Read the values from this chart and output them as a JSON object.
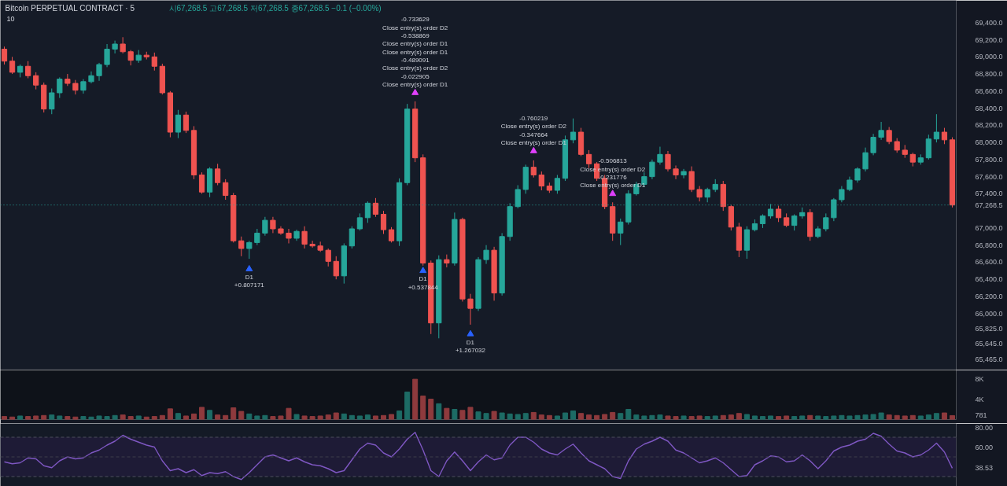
{
  "chart_data": [
    {
      "type": "candlestick",
      "title": "Bitcoin PERPETUAL CONTRACT · 5",
      "subtitle": "시67,268.5 고67,268.5 저67,268.5 종67,268.5 −0.1 (−0.00%)",
      "annotations": [
        "10"
      ],
      "categories": [
        null,
        null,
        null,
        null,
        null,
        null,
        null,
        null,
        null,
        null,
        null,
        null,
        null,
        null,
        null,
        null,
        null,
        null,
        null,
        null,
        null,
        null,
        null,
        null,
        null,
        null,
        null,
        null,
        null,
        null,
        null,
        null,
        null,
        null,
        null,
        null,
        null,
        null,
        null,
        null,
        null,
        null,
        null,
        null,
        null,
        null,
        null,
        null,
        null,
        null,
        null,
        null,
        null,
        null,
        null,
        null,
        null,
        null,
        null,
        null,
        null,
        null,
        null,
        null,
        null,
        null,
        null,
        null,
        null,
        null,
        null,
        null,
        null,
        null,
        null,
        null,
        null,
        null,
        null,
        null,
        null,
        null,
        null,
        null,
        null,
        null,
        null,
        null,
        null,
        null,
        null,
        null,
        null,
        null,
        null,
        null,
        null,
        null,
        null,
        null,
        null,
        null,
        null,
        null,
        null,
        null,
        null,
        null,
        null,
        null,
        null,
        null,
        null,
        null,
        null,
        null,
        null,
        null,
        null,
        null,
        null
      ],
      "ohlc": [
        [
          69090,
          69120,
          68910,
          68950
        ],
        [
          68950,
          69000,
          68800,
          68820
        ],
        [
          68820,
          68910,
          68760,
          68890
        ],
        [
          68890,
          68950,
          68750,
          68780
        ],
        [
          68780,
          68820,
          68620,
          68670
        ],
        [
          68670,
          68700,
          68350,
          68390
        ],
        [
          68390,
          68630,
          68330,
          68580
        ],
        [
          68580,
          68760,
          68520,
          68740
        ],
        [
          68740,
          68800,
          68660,
          68690
        ],
        [
          68690,
          68730,
          68560,
          68610
        ],
        [
          68610,
          68740,
          68570,
          68710
        ],
        [
          68710,
          68830,
          68690,
          68780
        ],
        [
          68780,
          68930,
          68720,
          68910
        ],
        [
          68910,
          69150,
          68880,
          69090
        ],
        [
          69090,
          69190,
          69040,
          69150
        ],
        [
          69150,
          69230,
          69040,
          69060
        ],
        [
          69060,
          69080,
          68900,
          68960
        ],
        [
          68960,
          69080,
          68930,
          69020
        ],
        [
          69020,
          69060,
          68970,
          69000
        ],
        [
          69000,
          69050,
          68840,
          68890
        ],
        [
          68890,
          68920,
          68560,
          68580
        ],
        [
          68580,
          68600,
          68060,
          68120
        ],
        [
          68120,
          68380,
          68050,
          68320
        ],
        [
          68320,
          68360,
          68110,
          68140
        ],
        [
          68140,
          68190,
          67570,
          67620
        ],
        [
          67620,
          67650,
          67400,
          67420
        ],
        [
          67420,
          67710,
          67360,
          67690
        ],
        [
          67690,
          67750,
          67500,
          67530
        ],
        [
          67530,
          67570,
          67330,
          67380
        ],
        [
          67380,
          67410,
          66830,
          66850
        ],
        [
          66850,
          66900,
          66670,
          66760
        ],
        [
          66760,
          66850,
          66640,
          66830
        ],
        [
          66830,
          66990,
          66800,
          66940
        ],
        [
          66940,
          67130,
          66910,
          67090
        ],
        [
          67090,
          67130,
          66940,
          66990
        ],
        [
          66990,
          67020,
          66920,
          66940
        ],
        [
          66940,
          66990,
          66820,
          66880
        ],
        [
          66880,
          66980,
          66850,
          66960
        ],
        [
          66960,
          67020,
          66760,
          66810
        ],
        [
          66810,
          66850,
          66770,
          66790
        ],
        [
          66790,
          66840,
          66720,
          66740
        ],
        [
          66740,
          66760,
          66550,
          66610
        ],
        [
          66610,
          66670,
          66400,
          66440
        ],
        [
          66440,
          66820,
          66350,
          66790
        ],
        [
          66790,
          67020,
          66760,
          66990
        ],
        [
          66990,
          67170,
          66970,
          67120
        ],
        [
          67120,
          67310,
          67060,
          67290
        ],
        [
          67290,
          67350,
          67130,
          67160
        ],
        [
          67160,
          67200,
          66930,
          66980
        ],
        [
          66980,
          67010,
          66830,
          66850
        ],
        [
          66850,
          67580,
          66790,
          67530
        ],
        [
          67530,
          68450,
          67500,
          68390
        ],
        [
          68390,
          68480,
          67770,
          67820
        ],
        [
          67820,
          67860,
          66560,
          66590
        ],
        [
          66590,
          66620,
          65760,
          65890
        ],
        [
          65890,
          66680,
          65710,
          66630
        ],
        [
          66630,
          66690,
          66540,
          66590
        ],
        [
          66590,
          67180,
          66560,
          67100
        ],
        [
          67100,
          67120,
          66140,
          66170
        ],
        [
          66170,
          66230,
          65870,
          66060
        ],
        [
          66060,
          66660,
          66030,
          66630
        ],
        [
          66630,
          66800,
          66580,
          66740
        ],
        [
          66740,
          66780,
          66150,
          66240
        ],
        [
          66240,
          66940,
          66210,
          66900
        ],
        [
          66900,
          67290,
          66850,
          67250
        ],
        [
          67250,
          67500,
          67230,
          67450
        ],
        [
          67450,
          67740,
          67400,
          67710
        ],
        [
          67710,
          67790,
          67590,
          67620
        ],
        [
          67620,
          67660,
          67440,
          67490
        ],
        [
          67490,
          67530,
          67410,
          67440
        ],
        [
          67440,
          67620,
          67400,
          67580
        ],
        [
          67580,
          68080,
          67550,
          68030
        ],
        [
          68030,
          68280,
          67990,
          68120
        ],
        [
          68120,
          68170,
          67840,
          67860
        ],
        [
          67860,
          67910,
          67700,
          67750
        ],
        [
          67750,
          67770,
          67550,
          67580
        ],
        [
          67580,
          67620,
          67220,
          67250
        ],
        [
          67250,
          67300,
          66850,
          66940
        ],
        [
          66940,
          67110,
          66800,
          67070
        ],
        [
          67070,
          67440,
          67040,
          67400
        ],
        [
          67400,
          67540,
          67380,
          67510
        ],
        [
          67510,
          67650,
          67480,
          67600
        ],
        [
          67600,
          67800,
          67570,
          67770
        ],
        [
          67770,
          67950,
          67740,
          67860
        ],
        [
          67860,
          67900,
          67660,
          67690
        ],
        [
          67690,
          67730,
          67570,
          67620
        ],
        [
          67620,
          67690,
          67580,
          67660
        ],
        [
          67660,
          67720,
          67420,
          67450
        ],
        [
          67450,
          67490,
          67310,
          67360
        ],
        [
          67360,
          67470,
          67300,
          67450
        ],
        [
          67450,
          67570,
          67420,
          67510
        ],
        [
          67510,
          67550,
          67200,
          67250
        ],
        [
          67250,
          67270,
          66970,
          67010
        ],
        [
          67010,
          67060,
          66660,
          66740
        ],
        [
          66740,
          67020,
          66640,
          66980
        ],
        [
          66980,
          67100,
          66960,
          67050
        ],
        [
          67050,
          67160,
          67000,
          67140
        ],
        [
          67140,
          67280,
          67110,
          67220
        ],
        [
          67220,
          67260,
          67070,
          67120
        ],
        [
          67120,
          67170,
          67010,
          67030
        ],
        [
          67030,
          67160,
          66970,
          67140
        ],
        [
          67140,
          67240,
          67110,
          67180
        ],
        [
          67180,
          67220,
          66850,
          66900
        ],
        [
          66900,
          67020,
          66880,
          66990
        ],
        [
          66990,
          67170,
          66960,
          67120
        ],
        [
          67120,
          67350,
          67080,
          67330
        ],
        [
          67330,
          67490,
          67300,
          67450
        ],
        [
          67450,
          67600,
          67430,
          67560
        ],
        [
          67560,
          67710,
          67530,
          67690
        ],
        [
          67690,
          67940,
          67660,
          67880
        ],
        [
          67880,
          68100,
          67850,
          68060
        ],
        [
          68060,
          68240,
          68030,
          68140
        ],
        [
          68140,
          68180,
          67980,
          68010
        ],
        [
          68010,
          68050,
          67880,
          67910
        ],
        [
          67910,
          67970,
          67820,
          67860
        ],
        [
          67860,
          67880,
          67720,
          67770
        ],
        [
          67770,
          67860,
          67740,
          67820
        ],
        [
          67820,
          68090,
          67800,
          68040
        ],
        [
          68040,
          68330,
          68000,
          68120
        ],
        [
          68120,
          68170,
          67980,
          68030
        ],
        [
          68030,
          68060,
          67240,
          67268.5
        ]
      ],
      "colors": [
        "#ef5350",
        "#ef5350",
        "#26a69a",
        "#ef5350",
        "#ef5350",
        "#ef5350",
        "#26a69a",
        "#26a69a",
        "#ef5350",
        "#ef5350",
        "#26a69a",
        "#26a69a",
        "#26a69a",
        "#26a69a",
        "#26a69a",
        "#ef5350",
        "#ef5350",
        "#26a69a",
        "#ef5350",
        "#ef5350",
        "#ef5350",
        "#ef5350",
        "#26a69a",
        "#ef5350",
        "#ef5350",
        "#ef5350",
        "#26a69a",
        "#ef5350",
        "#ef5350",
        "#ef5350",
        "#ef5350",
        "#26a69a",
        "#26a69a",
        "#26a69a",
        "#ef5350",
        "#ef5350",
        "#ef5350",
        "#26a69a",
        "#ef5350",
        "#ef5350",
        "#ef5350",
        "#ef5350",
        "#ef5350",
        "#26a69a",
        "#26a69a",
        "#26a69a",
        "#26a69a",
        "#ef5350",
        "#ef5350",
        "#ef5350",
        "#26a69a",
        "#26a69a",
        "#ef5350",
        "#ef5350",
        "#ef5350",
        "#26a69a",
        "#ef5350",
        "#26a69a",
        "#ef5350",
        "#ef5350",
        "#26a69a",
        "#26a69a",
        "#ef5350",
        "#26a69a",
        "#26a69a",
        "#26a69a",
        "#26a69a",
        "#ef5350",
        "#ef5350",
        "#ef5350",
        "#26a69a",
        "#26a69a",
        "#26a69a",
        "#ef5350",
        "#ef5350",
        "#ef5350",
        "#ef5350",
        "#ef5350",
        "#26a69a",
        "#26a69a",
        "#26a69a",
        "#26a69a",
        "#26a69a",
        "#26a69a",
        "#ef5350",
        "#ef5350",
        "#26a69a",
        "#ef5350",
        "#ef5350",
        "#26a69a",
        "#26a69a",
        "#ef5350",
        "#ef5350",
        "#ef5350",
        "#26a69a",
        "#26a69a",
        "#26a69a",
        "#26a69a",
        "#ef5350",
        "#ef5350",
        "#26a69a",
        "#26a69a",
        "#ef5350",
        "#26a69a",
        "#26a69a",
        "#26a69a",
        "#26a69a",
        "#26a69a",
        "#26a69a",
        "#26a69a",
        "#26a69a",
        "#26a69a",
        "#ef5350",
        "#ef5350",
        "#ef5350",
        "#ef5350",
        "#26a69a",
        "#26a69a",
        "#26a69a",
        "#ef5350",
        "#ef5350"
      ],
      "series": [
        {
          "type": "scatter",
          "color": "#e040fb",
          "values": [
            null,
            null,
            null,
            null,
            null,
            null,
            null,
            null,
            null,
            null,
            null,
            null,
            null,
            null,
            null,
            null,
            null,
            null,
            null,
            null,
            null,
            null,
            null,
            null,
            null,
            null,
            null,
            null,
            null,
            null,
            null,
            null,
            null,
            null,
            null,
            null,
            null,
            null,
            null,
            null,
            null,
            null,
            null,
            null,
            null,
            null,
            null,
            null,
            null,
            null,
            null,
            null,
            68580,
            null,
            null,
            null,
            null,
            null,
            null,
            null,
            null,
            null,
            null,
            null,
            null,
            null,
            null,
            67900,
            null,
            null,
            null,
            null,
            null,
            null,
            null,
            null,
            null,
            67400,
            null,
            null,
            null,
            null,
            null,
            null,
            null,
            null,
            null,
            null,
            null,
            null,
            null,
            null,
            null,
            null,
            null,
            null,
            null,
            null,
            null,
            null,
            null,
            null,
            null,
            null,
            null,
            null,
            null,
            null,
            null,
            null,
            null,
            null,
            null,
            null,
            null,
            null,
            null,
            null,
            null,
            null,
            null
          ],
          "value_labels": [
            null,
            null,
            null,
            null,
            null,
            null,
            null,
            null,
            null,
            null,
            null,
            null,
            null,
            null,
            null,
            null,
            null,
            null,
            null,
            null,
            null,
            null,
            null,
            null,
            null,
            null,
            null,
            null,
            null,
            null,
            null,
            null,
            null,
            null,
            null,
            null,
            null,
            null,
            null,
            null,
            null,
            null,
            null,
            null,
            null,
            null,
            null,
            null,
            null,
            null,
            null,
            null,
            "-0.733629\nClose entry(s) order D2\n-0.538869\nClose entry(s) order D1\nClose entry(s) order D1\n-0.489091\nClose entry(s) order D2\n-0.022905\nClose entry(s) order D1",
            null,
            null,
            null,
            null,
            null,
            null,
            null,
            null,
            null,
            null,
            null,
            null,
            null,
            null,
            "-0.760219\nClose entry(s) order D2\n-0.347664\nClose entry(s) order D1",
            null,
            null,
            null,
            null,
            null,
            null,
            null,
            null,
            null,
            "-0.506813\nClose entry(s) order D2\n-0.231776\nClose entry(s) order D1",
            null,
            null,
            null,
            null,
            null,
            null,
            null,
            null,
            null,
            null,
            null,
            null,
            null,
            null,
            null,
            null,
            null,
            null,
            null,
            null,
            null,
            null,
            null,
            null,
            null,
            null,
            null,
            null,
            null,
            null,
            null,
            null,
            null,
            null,
            null,
            null,
            null,
            null,
            null,
            null,
            null,
            null,
            null
          ]
        },
        {
          "type": "scatter",
          "color": "#2962ff",
          "values": [
            null,
            null,
            null,
            null,
            null,
            null,
            null,
            null,
            null,
            null,
            null,
            null,
            null,
            null,
            null,
            null,
            null,
            null,
            null,
            null,
            null,
            null,
            null,
            null,
            null,
            null,
            null,
            null,
            null,
            null,
            null,
            66520,
            null,
            null,
            null,
            null,
            null,
            null,
            null,
            null,
            null,
            null,
            null,
            null,
            null,
            null,
            null,
            null,
            null,
            null,
            null,
            null,
            null,
            66500,
            null,
            null,
            null,
            null,
            null,
            65760,
            null,
            null,
            null,
            null,
            null,
            null,
            null,
            null,
            null,
            null,
            null,
            null,
            null,
            null,
            null,
            null,
            null,
            null,
            null,
            null,
            null,
            null,
            null,
            null,
            null,
            null,
            null,
            null,
            null,
            null,
            null,
            null,
            null,
            null,
            null,
            null,
            null,
            null,
            null,
            null,
            null,
            null,
            null,
            null,
            null,
            null,
            null,
            null,
            null,
            null,
            null,
            null,
            null,
            null,
            null,
            null,
            null,
            null,
            null,
            null,
            null
          ],
          "value_labels": [
            null,
            null,
            null,
            null,
            null,
            null,
            null,
            null,
            null,
            null,
            null,
            null,
            null,
            null,
            null,
            null,
            null,
            null,
            null,
            null,
            null,
            null,
            null,
            null,
            null,
            null,
            null,
            null,
            null,
            null,
            null,
            "D1\n+0.807171",
            null,
            null,
            null,
            null,
            null,
            null,
            null,
            null,
            null,
            null,
            null,
            null,
            null,
            null,
            null,
            null,
            null,
            null,
            null,
            null,
            null,
            "D1\n+0.537844",
            null,
            null,
            null,
            null,
            null,
            "D1\n+1.267032",
            null,
            null,
            null,
            null,
            null,
            null,
            null,
            null,
            null,
            null,
            null,
            null,
            null,
            null,
            null,
            null,
            null,
            null,
            null,
            null,
            null,
            null,
            null,
            null,
            null,
            null,
            null,
            null,
            null,
            null,
            null,
            null,
            null,
            null,
            null,
            null,
            null,
            null,
            null,
            null,
            null,
            null,
            null,
            null,
            null,
            null,
            null,
            null,
            null,
            null,
            null,
            null,
            null,
            null,
            null,
            null,
            null,
            null,
            null,
            null,
            null
          ]
        }
      ],
      "marker": "triangle",
      "ylim": [
        65340,
        69660
      ],
      "yticks": [
        {
          "value": 65465,
          "label": "65,465.0"
        },
        {
          "value": 65645,
          "label": "65,645.0"
        },
        {
          "value": 65825,
          "label": "65,825.0"
        },
        {
          "value": 66000,
          "label": "66,000.0"
        },
        {
          "value": 66200,
          "label": "66,200.0"
        },
        {
          "value": 66400,
          "label": "66,400.0"
        },
        {
          "value": 66600,
          "label": "66,600.0"
        },
        {
          "value": 66800,
          "label": "66,800.0"
        },
        {
          "value": 67000,
          "label": "67,000.0"
        },
        {
          "value": 67268.5,
          "label": "67,268.5"
        },
        {
          "value": 67400,
          "label": "67,400.0"
        },
        {
          "value": 67600,
          "label": "67,600.0"
        },
        {
          "value": 67800,
          "label": "67,800.0"
        },
        {
          "value": 68000,
          "label": "68,000.0"
        },
        {
          "value": 68200,
          "label": "68,200.0"
        },
        {
          "value": 68400,
          "label": "68,400.0"
        },
        {
          "value": 68600,
          "label": "68,600.0"
        },
        {
          "value": 68800,
          "label": "68,800.0"
        },
        {
          "value": 69000,
          "label": "69,000.0"
        },
        {
          "value": 69200,
          "label": "69,200.0"
        },
        {
          "value": 69400,
          "label": "69,400.0"
        }
      ],
      "ref_lines": [
        {
          "axis": "y",
          "value": 67268.5,
          "color": "#26a69a",
          "line_style": "dotted"
        }
      ],
      "tick_labels": "y"
    },
    {
      "type": "bar",
      "categories": [
        null,
        null,
        null,
        null,
        null,
        null,
        null,
        null,
        null,
        null,
        null,
        null,
        null,
        null,
        null,
        null,
        null,
        null,
        null,
        null,
        null,
        null,
        null,
        null,
        null,
        null,
        null,
        null,
        null,
        null,
        null,
        null,
        null,
        null,
        null,
        null,
        null,
        null,
        null,
        null,
        null,
        null,
        null,
        null,
        null,
        null,
        null,
        null,
        null,
        null,
        null,
        null,
        null,
        null,
        null,
        null,
        null,
        null,
        null,
        null,
        null,
        null,
        null,
        null,
        null,
        null,
        null,
        null,
        null,
        null,
        null,
        null,
        null,
        null,
        null,
        null,
        null,
        null,
        null,
        null,
        null,
        null,
        null,
        null,
        null,
        null,
        null,
        null,
        null,
        null,
        null,
        null,
        null,
        null,
        null,
        null,
        null,
        null,
        null,
        null,
        null,
        null,
        null,
        null,
        null,
        null,
        null,
        null,
        null,
        null,
        null,
        null,
        null,
        null,
        null,
        null,
        null,
        null,
        null,
        null,
        null
      ],
      "values": [
        600,
        500,
        700,
        600,
        700,
        800,
        900,
        700,
        600,
        500,
        600,
        500,
        700,
        600,
        800,
        900,
        600,
        700,
        500,
        600,
        800,
        2100,
        1200,
        700,
        1100,
        2400,
        1800,
        900,
        800,
        2300,
        1600,
        1100,
        700,
        800,
        600,
        700,
        2200,
        1000,
        700,
        600,
        700,
        900,
        1300,
        1100,
        800,
        700,
        900,
        700,
        800,
        1000,
        1700,
        5400,
        7900,
        4600,
        4000,
        3100,
        2200,
        2000,
        1800,
        2400,
        1500,
        1200,
        1600,
        1300,
        1100,
        1000,
        1200,
        1400,
        900,
        800,
        700,
        1300,
        1700,
        1200,
        900,
        800,
        1000,
        1400,
        1200,
        2000,
        900,
        700,
        800,
        900,
        700,
        600,
        700,
        600,
        700,
        600,
        700,
        800,
        900,
        1200,
        1000,
        700,
        600,
        700,
        600,
        700,
        600,
        700,
        800,
        700,
        600,
        700,
        800,
        700,
        800,
        900,
        1000,
        1300,
        900,
        800,
        700,
        800,
        700,
        900,
        1200,
        1300,
        781
      ],
      "colors": [
        "#8e3a3d",
        "#8e3a3d",
        "#1d6b65",
        "#8e3a3d",
        "#8e3a3d",
        "#8e3a3d",
        "#1d6b65",
        "#1d6b65",
        "#8e3a3d",
        "#8e3a3d",
        "#1d6b65",
        "#1d6b65",
        "#1d6b65",
        "#1d6b65",
        "#1d6b65",
        "#8e3a3d",
        "#8e3a3d",
        "#1d6b65",
        "#8e3a3d",
        "#8e3a3d",
        "#8e3a3d",
        "#8e3a3d",
        "#1d6b65",
        "#8e3a3d",
        "#8e3a3d",
        "#8e3a3d",
        "#1d6b65",
        "#8e3a3d",
        "#8e3a3d",
        "#8e3a3d",
        "#8e3a3d",
        "#1d6b65",
        "#1d6b65",
        "#1d6b65",
        "#8e3a3d",
        "#8e3a3d",
        "#8e3a3d",
        "#1d6b65",
        "#8e3a3d",
        "#8e3a3d",
        "#8e3a3d",
        "#8e3a3d",
        "#8e3a3d",
        "#1d6b65",
        "#1d6b65",
        "#1d6b65",
        "#1d6b65",
        "#8e3a3d",
        "#8e3a3d",
        "#8e3a3d",
        "#1d6b65",
        "#1d6b65",
        "#8e3a3d",
        "#8e3a3d",
        "#8e3a3d",
        "#1d6b65",
        "#8e3a3d",
        "#1d6b65",
        "#8e3a3d",
        "#8e3a3d",
        "#1d6b65",
        "#1d6b65",
        "#8e3a3d",
        "#1d6b65",
        "#1d6b65",
        "#1d6b65",
        "#1d6b65",
        "#8e3a3d",
        "#8e3a3d",
        "#8e3a3d",
        "#1d6b65",
        "#1d6b65",
        "#1d6b65",
        "#8e3a3d",
        "#8e3a3d",
        "#8e3a3d",
        "#8e3a3d",
        "#8e3a3d",
        "#1d6b65",
        "#1d6b65",
        "#1d6b65",
        "#1d6b65",
        "#1d6b65",
        "#1d6b65",
        "#8e3a3d",
        "#8e3a3d",
        "#1d6b65",
        "#8e3a3d",
        "#8e3a3d",
        "#1d6b65",
        "#1d6b65",
        "#8e3a3d",
        "#8e3a3d",
        "#8e3a3d",
        "#1d6b65",
        "#1d6b65",
        "#1d6b65",
        "#1d6b65",
        "#8e3a3d",
        "#8e3a3d",
        "#1d6b65",
        "#1d6b65",
        "#8e3a3d",
        "#1d6b65",
        "#1d6b65",
        "#1d6b65",
        "#1d6b65",
        "#1d6b65",
        "#1d6b65",
        "#1d6b65",
        "#1d6b65",
        "#1d6b65",
        "#8e3a3d",
        "#8e3a3d",
        "#8e3a3d",
        "#8e3a3d",
        "#1d6b65",
        "#1d6b65",
        "#1d6b65",
        "#8e3a3d",
        "#8e3a3d"
      ],
      "ylim": [
        0,
        9700
      ],
      "yticks": [
        {
          "value": 781,
          "label": "781"
        },
        {
          "value": 4000,
          "label": "4K"
        },
        {
          "value": 8000,
          "label": "8K"
        }
      ],
      "tick_labels": "y"
    },
    {
      "type": "line",
      "categories": [
        null,
        null,
        null,
        null,
        null,
        null,
        null,
        null,
        null,
        null,
        null,
        null,
        null,
        null,
        null,
        null,
        null,
        null,
        null,
        null,
        null,
        null,
        null,
        null,
        null,
        null,
        null,
        null,
        null,
        null,
        null,
        null,
        null,
        null,
        null,
        null,
        null,
        null,
        null,
        null,
        null,
        null,
        null,
        null,
        null,
        null,
        null,
        null,
        null,
        null,
        null,
        null,
        null,
        null,
        null,
        null,
        null,
        null,
        null,
        null,
        null,
        null,
        null,
        null,
        null,
        null,
        null,
        null,
        null,
        null,
        null,
        null,
        null,
        null,
        null,
        null,
        null,
        null,
        null,
        null,
        null,
        null,
        null,
        null,
        null,
        null,
        null,
        null,
        null,
        null,
        null,
        null,
        null,
        null,
        null,
        null,
        null,
        null,
        null,
        null,
        null,
        null,
        null,
        null,
        null,
        null,
        null,
        null,
        null,
        null,
        null,
        null,
        null,
        null,
        null,
        null,
        null,
        null,
        null,
        null,
        null
      ],
      "values": [
        45,
        43,
        44,
        49,
        48,
        41,
        39,
        46,
        50,
        48,
        49,
        54,
        57,
        62,
        66,
        72,
        68,
        65,
        62,
        60,
        46,
        36,
        38,
        34,
        37,
        31,
        34,
        33,
        35,
        30,
        27,
        34,
        42,
        50,
        52,
        49,
        46,
        49,
        45,
        42,
        41,
        38,
        34,
        36,
        47,
        58,
        64,
        62,
        54,
        50,
        58,
        68,
        75,
        57,
        36,
        30,
        46,
        55,
        46,
        36,
        45,
        52,
        47,
        49,
        62,
        70,
        70,
        65,
        58,
        54,
        52,
        58,
        63,
        54,
        46,
        42,
        38,
        30,
        28,
        46,
        58,
        63,
        66,
        70,
        66,
        57,
        54,
        49,
        44,
        46,
        49,
        44,
        37,
        30,
        31,
        42,
        46,
        51,
        50,
        45,
        46,
        52,
        46,
        38,
        46,
        56,
        60,
        62,
        66,
        68,
        74,
        71,
        63,
        56,
        54,
        50,
        52,
        57,
        64,
        55,
        38.53
      ],
      "color": "#7e57c2",
      "ylim": [
        20,
        84
      ],
      "yticks": [
        {
          "value": 38.53,
          "label": "38.53"
        },
        {
          "value": 60,
          "label": "60.00"
        },
        {
          "value": 80,
          "label": "80.00"
        }
      ],
      "bands": [
        {
          "axis": "y",
          "from": 30,
          "to": 70,
          "color": "#1e1b36"
        }
      ],
      "ref_lines": [
        {
          "axis": "y",
          "value": 70,
          "color": "#4c4f5c",
          "line_style": "dashed"
        },
        {
          "axis": "y",
          "value": 50,
          "color": "#3c3f4a",
          "line_style": "dashed"
        },
        {
          "axis": "y",
          "value": 30,
          "color": "#4c4f5c",
          "line_style": "dashed"
        }
      ],
      "tick_labels": "y"
    }
  ]
}
